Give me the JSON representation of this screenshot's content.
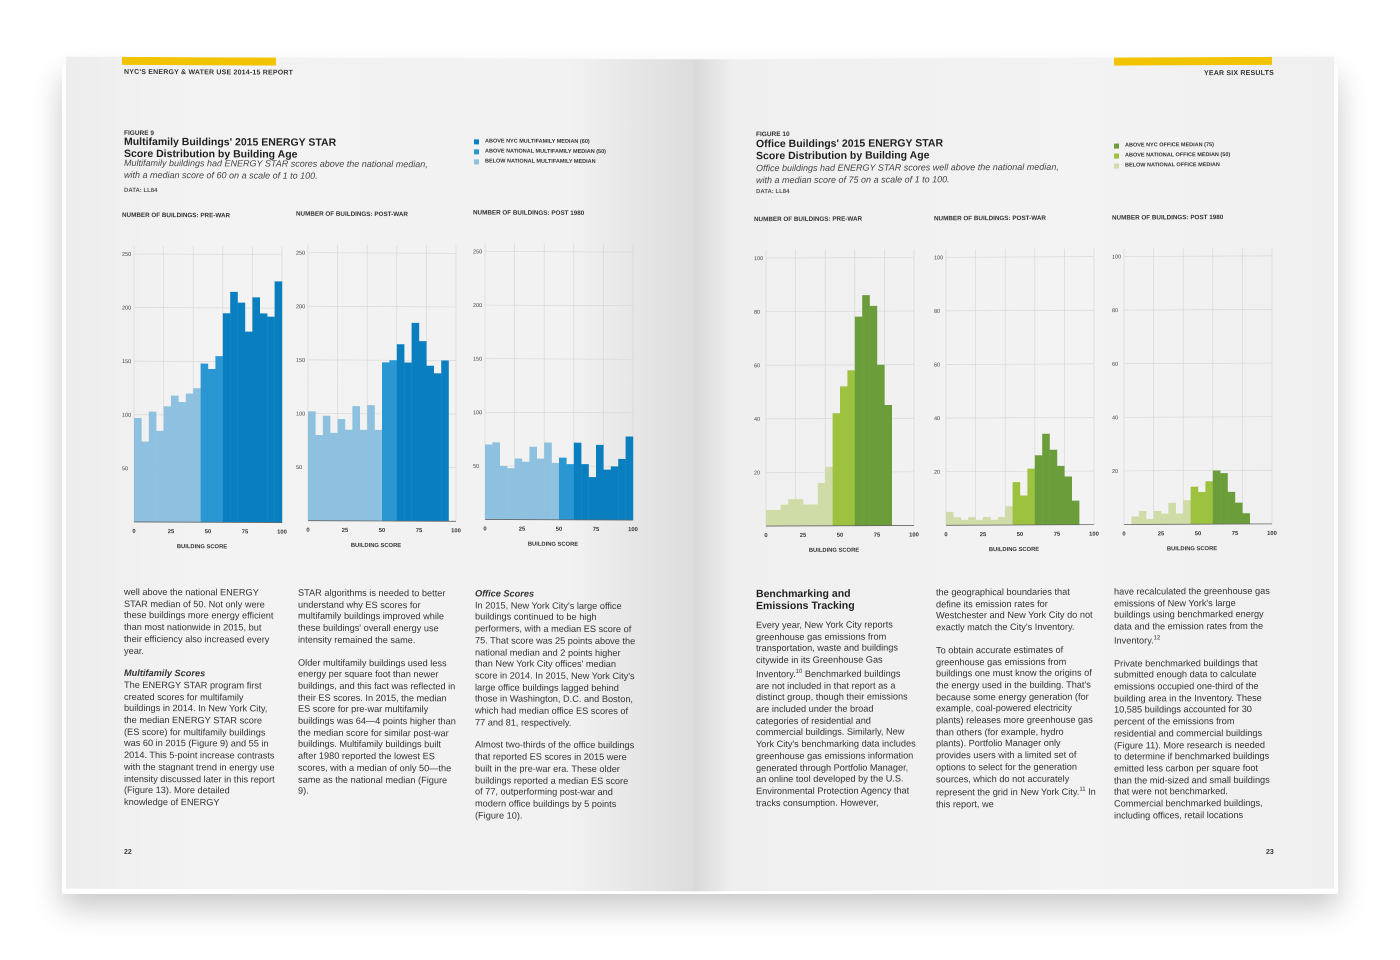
{
  "header": {
    "left_running_head": "NYC'S ENERGY & WATER USE 2014-15 REPORT",
    "right_running_head": "YEAR SIX RESULTS",
    "accent_color": "#f2c400"
  },
  "figure9": {
    "label": "FIGURE 9",
    "title_line1": "Multifamily Buildings' 2015 ENERGY STAR",
    "title_line2": "Score Distribution by Building Age",
    "desc_line1": "Multifamily buildings had ENERGY STAR scores above the national median,",
    "desc_line2": "with a median score of 60 on a scale of 1 to 100.",
    "data_source": "DATA: LL84",
    "legend": [
      {
        "label": "ABOVE NYC MULTIFAMILY MEDIAN (60)",
        "color": "#0a7fc0"
      },
      {
        "label": "ABOVE NATIONAL MULTIFAMILY MEDIAN (50)",
        "color": "#2b97d2"
      },
      {
        "label": "BELOW NATIONAL MULTIFAMILY MEDIAN",
        "color": "#8dc1df"
      }
    ]
  },
  "figure10": {
    "label": "FIGURE 10",
    "title_line1": "Office Buildings' 2015 ENERGY STAR",
    "title_line2": "Score Distribution by Building Age",
    "desc_line1": "Office buildings had ENERGY STAR scores well above the national median,",
    "desc_line2": "with a median score of 75 on a scale of 1 to 100.",
    "data_source": "DATA: LL84",
    "legend": [
      {
        "label": "ABOVE NYC OFFICE MEDIAN (75)",
        "color": "#6b9e3a"
      },
      {
        "label": "ABOVE NATIONAL OFFICE MEDIAN (50)",
        "color": "#9dc23f"
      },
      {
        "label": "BELOW NATIONAL OFFICE MEDIAN",
        "color": "#cfdca8"
      }
    ]
  },
  "chart_data": [
    {
      "type": "bar",
      "title": "NUMBER OF BUILDINGS: PRE-WAR",
      "xlabel": "BUILDING SCORE",
      "x_ticks": [
        0,
        25,
        50,
        75,
        100
      ],
      "y_ticks": [
        50,
        100,
        150,
        200,
        250
      ],
      "ylim": [
        0,
        250
      ],
      "values": [
        97,
        75,
        103,
        85,
        108,
        118,
        112,
        120,
        125,
        148,
        143,
        155,
        195,
        215,
        205,
        178,
        210,
        195,
        192,
        225
      ],
      "colors": [
        "#8dc1df",
        "#8dc1df",
        "#8dc1df",
        "#8dc1df",
        "#8dc1df",
        "#8dc1df",
        "#8dc1df",
        "#8dc1df",
        "#8dc1df",
        "#2b97d2",
        "#2b97d2",
        "#2b97d2",
        "#0a7fc0",
        "#0a7fc0",
        "#0a7fc0",
        "#0a7fc0",
        "#0a7fc0",
        "#0a7fc0",
        "#0a7fc0",
        "#0a7fc0"
      ]
    },
    {
      "type": "bar",
      "title": "NUMBER OF BUILDINGS: POST-WAR",
      "xlabel": "BUILDING SCORE",
      "x_ticks": [
        0,
        25,
        50,
        75,
        100
      ],
      "y_ticks": [
        50,
        100,
        150,
        200,
        250
      ],
      "ylim": [
        0,
        250
      ],
      "values": [
        102,
        80,
        98,
        82,
        95,
        85,
        107,
        85,
        108,
        85,
        148,
        150,
        165,
        148,
        185,
        168,
        145,
        138,
        150,
        0
      ],
      "colors": [
        "#8dc1df",
        "#8dc1df",
        "#8dc1df",
        "#8dc1df",
        "#8dc1df",
        "#8dc1df",
        "#8dc1df",
        "#8dc1df",
        "#8dc1df",
        "#8dc1df",
        "#2b97d2",
        "#2b97d2",
        "#0a7fc0",
        "#0a7fc0",
        "#0a7fc0",
        "#0a7fc0",
        "#0a7fc0",
        "#0a7fc0",
        "#0a7fc0",
        "#0a7fc0"
      ]
    },
    {
      "type": "bar",
      "title": "NUMBER OF BUILDINGS: POST 1980",
      "xlabel": "BUILDING SCORE",
      "x_ticks": [
        0,
        25,
        50,
        75,
        100
      ],
      "y_ticks": [
        50,
        100,
        150,
        200,
        250
      ],
      "ylim": [
        0,
        250
      ],
      "values": [
        70,
        72,
        50,
        48,
        57,
        54,
        68,
        57,
        72,
        53,
        58,
        52,
        72,
        52,
        40,
        70,
        47,
        50,
        57,
        78
      ],
      "colors": [
        "#8dc1df",
        "#8dc1df",
        "#8dc1df",
        "#8dc1df",
        "#8dc1df",
        "#8dc1df",
        "#8dc1df",
        "#8dc1df",
        "#8dc1df",
        "#8dc1df",
        "#2b97d2",
        "#2b97d2",
        "#0a7fc0",
        "#0a7fc0",
        "#0a7fc0",
        "#0a7fc0",
        "#0a7fc0",
        "#0a7fc0",
        "#0a7fc0",
        "#0a7fc0"
      ]
    },
    {
      "type": "bar",
      "title": "NUMBER OF BUILDINGS: PRE-WAR",
      "xlabel": "BUILDING SCORE",
      "x_ticks": [
        0,
        25,
        50,
        75,
        100
      ],
      "y_ticks": [
        20,
        40,
        60,
        80,
        100
      ],
      "ylim": [
        0,
        100
      ],
      "values": [
        6,
        6,
        8,
        10,
        10,
        8,
        8,
        16,
        22,
        42,
        52,
        58,
        78,
        86,
        82,
        60,
        45,
        0,
        0,
        0
      ],
      "colors": [
        "#cfdca8",
        "#cfdca8",
        "#cfdca8",
        "#cfdca8",
        "#cfdca8",
        "#cfdca8",
        "#cfdca8",
        "#cfdca8",
        "#cfdca8",
        "#9dc23f",
        "#9dc23f",
        "#9dc23f",
        "#6b9e3a",
        "#6b9e3a",
        "#6b9e3a",
        "#6b9e3a",
        "#6b9e3a",
        "#6b9e3a",
        "#6b9e3a",
        "#6b9e3a"
      ]
    },
    {
      "type": "bar",
      "title": "NUMBER OF BUILDINGS: POST-WAR",
      "xlabel": "BUILDING SCORE",
      "x_ticks": [
        0,
        25,
        50,
        75,
        100
      ],
      "y_ticks": [
        20,
        40,
        60,
        80,
        100
      ],
      "ylim": [
        0,
        100
      ],
      "values": [
        5,
        3,
        2,
        3,
        2,
        3,
        2,
        3,
        7,
        16,
        11,
        21,
        26,
        34,
        28,
        22,
        18,
        9,
        0,
        0
      ],
      "colors": [
        "#cfdca8",
        "#cfdca8",
        "#cfdca8",
        "#cfdca8",
        "#cfdca8",
        "#cfdca8",
        "#cfdca8",
        "#cfdca8",
        "#cfdca8",
        "#9dc23f",
        "#9dc23f",
        "#9dc23f",
        "#6b9e3a",
        "#6b9e3a",
        "#6b9e3a",
        "#6b9e3a",
        "#6b9e3a",
        "#6b9e3a",
        "#6b9e3a",
        "#6b9e3a"
      ]
    },
    {
      "type": "bar",
      "title": "NUMBER OF BUILDINGS: POST 1980",
      "xlabel": "BUILDING SCORE",
      "x_ticks": [
        0,
        25,
        50,
        75,
        100
      ],
      "y_ticks": [
        20,
        40,
        60,
        80,
        100
      ],
      "ylim": [
        0,
        100
      ],
      "values": [
        0,
        3,
        5,
        2,
        5,
        4,
        8,
        4,
        9,
        14,
        12,
        16,
        20,
        19,
        12,
        8,
        4,
        0,
        0,
        0
      ],
      "colors": [
        "#cfdca8",
        "#cfdca8",
        "#cfdca8",
        "#cfdca8",
        "#cfdca8",
        "#cfdca8",
        "#cfdca8",
        "#cfdca8",
        "#cfdca8",
        "#9dc23f",
        "#9dc23f",
        "#9dc23f",
        "#6b9e3a",
        "#6b9e3a",
        "#6b9e3a",
        "#6b9e3a",
        "#6b9e3a",
        "#6b9e3a",
        "#6b9e3a",
        "#6b9e3a"
      ]
    }
  ],
  "left_text": {
    "col1_p1": "well above the national ENERGY STAR median of 50. Not only were these buildings more energy efficient than most nationwide in 2015, but their efficiency also increased every year.",
    "col1_subhead": "Multifamily Scores",
    "col1_p2": "The ENERGY STAR program first created scores for multifamily buildings in 2014. In New York City, the median ENERGY STAR score (ES score) for multifamily buildings was 60 in 2015 (Figure 9) and 55 in 2014. This 5-point increase contrasts with the stagnant trend in energy use intensity discussed later in this report (Figure 13). More detailed knowledge of ENERGY",
    "col2_p1": "STAR algorithms is needed to better understand why ES scores for multifamily buildings improved while these buildings' overall energy use intensity remained the same.",
    "col2_p2": "Older multifamily buildings used less energy per square foot than newer buildings, and this fact was reflected in their ES scores. In 2015, the median ES score for pre-war multifamily buildings was 64—4 points higher than the median score for similar post-war buildings. Multifamily buildings built after 1980 reported the lowest ES scores, with a median of only 50—the same as the national median (Figure 9).",
    "col3_subhead": "Office Scores",
    "col3_p1": "In 2015, New York City's large office buildings continued to be high performers, with a median ES score of 75. That score was 25 points above the national median and 2 points higher than New York City offices' median score in 2014. In 2015, New York City's large office buildings lagged behind those in Washington, D.C. and Boston, which had median office ES scores of 77 and 81, respectively.",
    "col3_p2": "Almost two-thirds of the office buildings that reported ES scores in 2015 were built in the pre-war era. These older buildings reported a median ES score of 77, outperforming post-war and modern office buildings by 5 points (Figure 10).",
    "page_number": "22"
  },
  "right_text": {
    "section_head_line1": "Benchmarking and",
    "section_head_line2": "Emissions Tracking",
    "col1_p1_a": "Every year, New York City reports greenhouse gas emissions from transportation, waste and buildings citywide in its Greenhouse Gas Inventory.",
    "col1_sup1": "10",
    "col1_p1_b": " Benchmarked buildings are not included in that report as a distinct group, though their emissions are included under the broad categories of residential and commercial buildings. Similarly, New York City's benchmarking data includes greenhouse gas emissions information generated through Portfolio Manager, an online tool developed by the U.S. Environmental Protection Agency that tracks consumption. However,",
    "col2_p1": "the geographical boundaries that define its emission rates for Westchester and New York City do not exactly match the City's Inventory.",
    "col2_p2_a": "To obtain accurate estimates of greenhouse gas emissions from buildings one must know the origins of the energy used in the building. That's because some energy generation (for example, coal-powered electricity plants) releases more greenhouse gas than others (for example, hydro plants). Portfolio Manager only provides users with a limited set of options to select for the generation sources, which do not accurately represent the grid in New York City.",
    "col2_sup": "11",
    "col2_p2_b": " In this report, we",
    "col3_p1_a": "have recalculated the greenhouse gas emissions of New York's large buildings using benchmarked energy data and the emission rates from the Inventory.",
    "col3_sup": "12",
    "col3_p2": "Private benchmarked buildings that submitted enough data to calculate emissions occupied one-third of the building area in the Inventory. These 10,585 buildings accounted for 30 percent of the emissions from residential and commercial buildings (Figure 11). More research is needed to determine if benchmarked buildings emitted less carbon per square foot than the mid-sized and small buildings that were not benchmarked. Commercial benchmarked buildings, including offices, retail locations",
    "page_number": "23"
  }
}
